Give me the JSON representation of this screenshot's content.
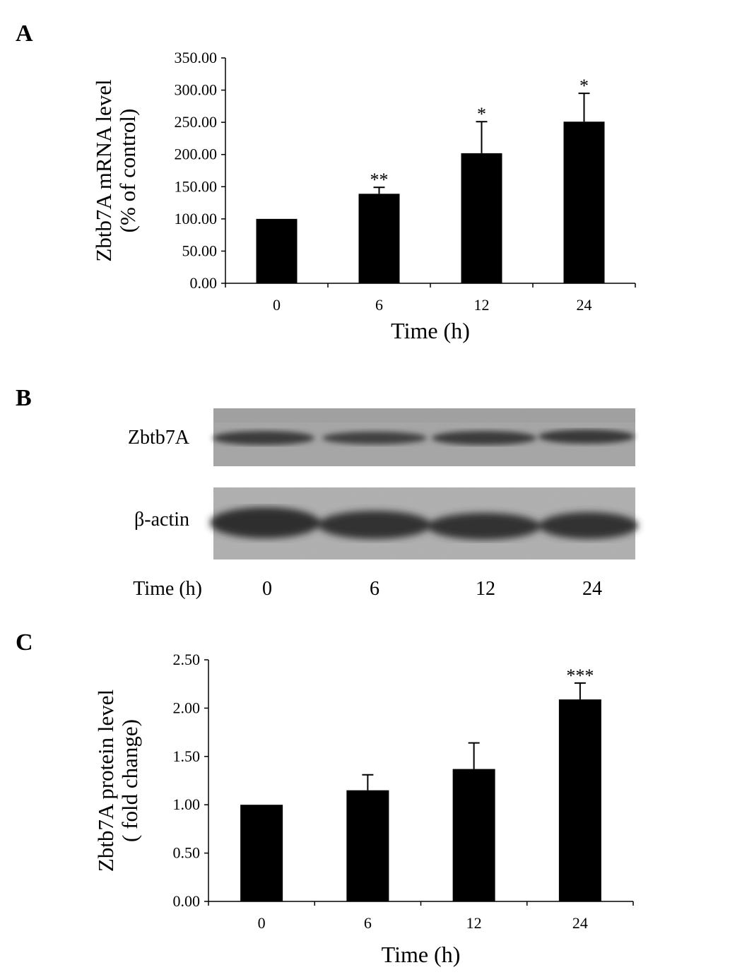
{
  "panels": {
    "a": {
      "letter": "A"
    },
    "b": {
      "letter": "B",
      "rows": [
        {
          "label": "Zbtb7A"
        },
        {
          "label": "β-actin"
        }
      ],
      "time_label": "Time (h)",
      "lanes": [
        "0",
        "6",
        "12",
        "24"
      ]
    },
    "c": {
      "letter": "C"
    }
  },
  "chart_data": [
    {
      "type": "bar",
      "panel": "A",
      "categories": [
        "0",
        "6",
        "12",
        "24"
      ],
      "values": [
        100.0,
        139.0,
        202.0,
        251.0
      ],
      "errors": [
        0,
        10.0,
        49.0,
        44.0
      ],
      "significance": [
        "",
        "**",
        "*",
        "*"
      ],
      "xlabel": "Time  (h)",
      "ylabel_lines": [
        "Zbtb7A  mRNA  level",
        "(%  of  control)"
      ],
      "ylim": [
        0,
        350
      ],
      "yticks": [
        "0.00",
        "50.00",
        "100.00",
        "150.00",
        "200.00",
        "250.00",
        "300.00",
        "350.00"
      ],
      "bar_color": "#000000",
      "grid": false
    },
    {
      "type": "bar",
      "panel": "C",
      "categories": [
        "0",
        "6",
        "12",
        "24"
      ],
      "values": [
        1.0,
        1.15,
        1.37,
        2.09
      ],
      "errors": [
        0,
        0.16,
        0.27,
        0.17
      ],
      "significance": [
        "",
        "",
        "",
        "***"
      ],
      "xlabel": "Time  (h)",
      "ylabel_lines": [
        "Zbtb7A  protein  level",
        "( fold  change)"
      ],
      "ylim": [
        0,
        2.5
      ],
      "yticks": [
        "0.00",
        "0.50",
        "1.00",
        "1.50",
        "2.00",
        "2.50"
      ],
      "bar_color": "#000000",
      "grid": false
    }
  ]
}
